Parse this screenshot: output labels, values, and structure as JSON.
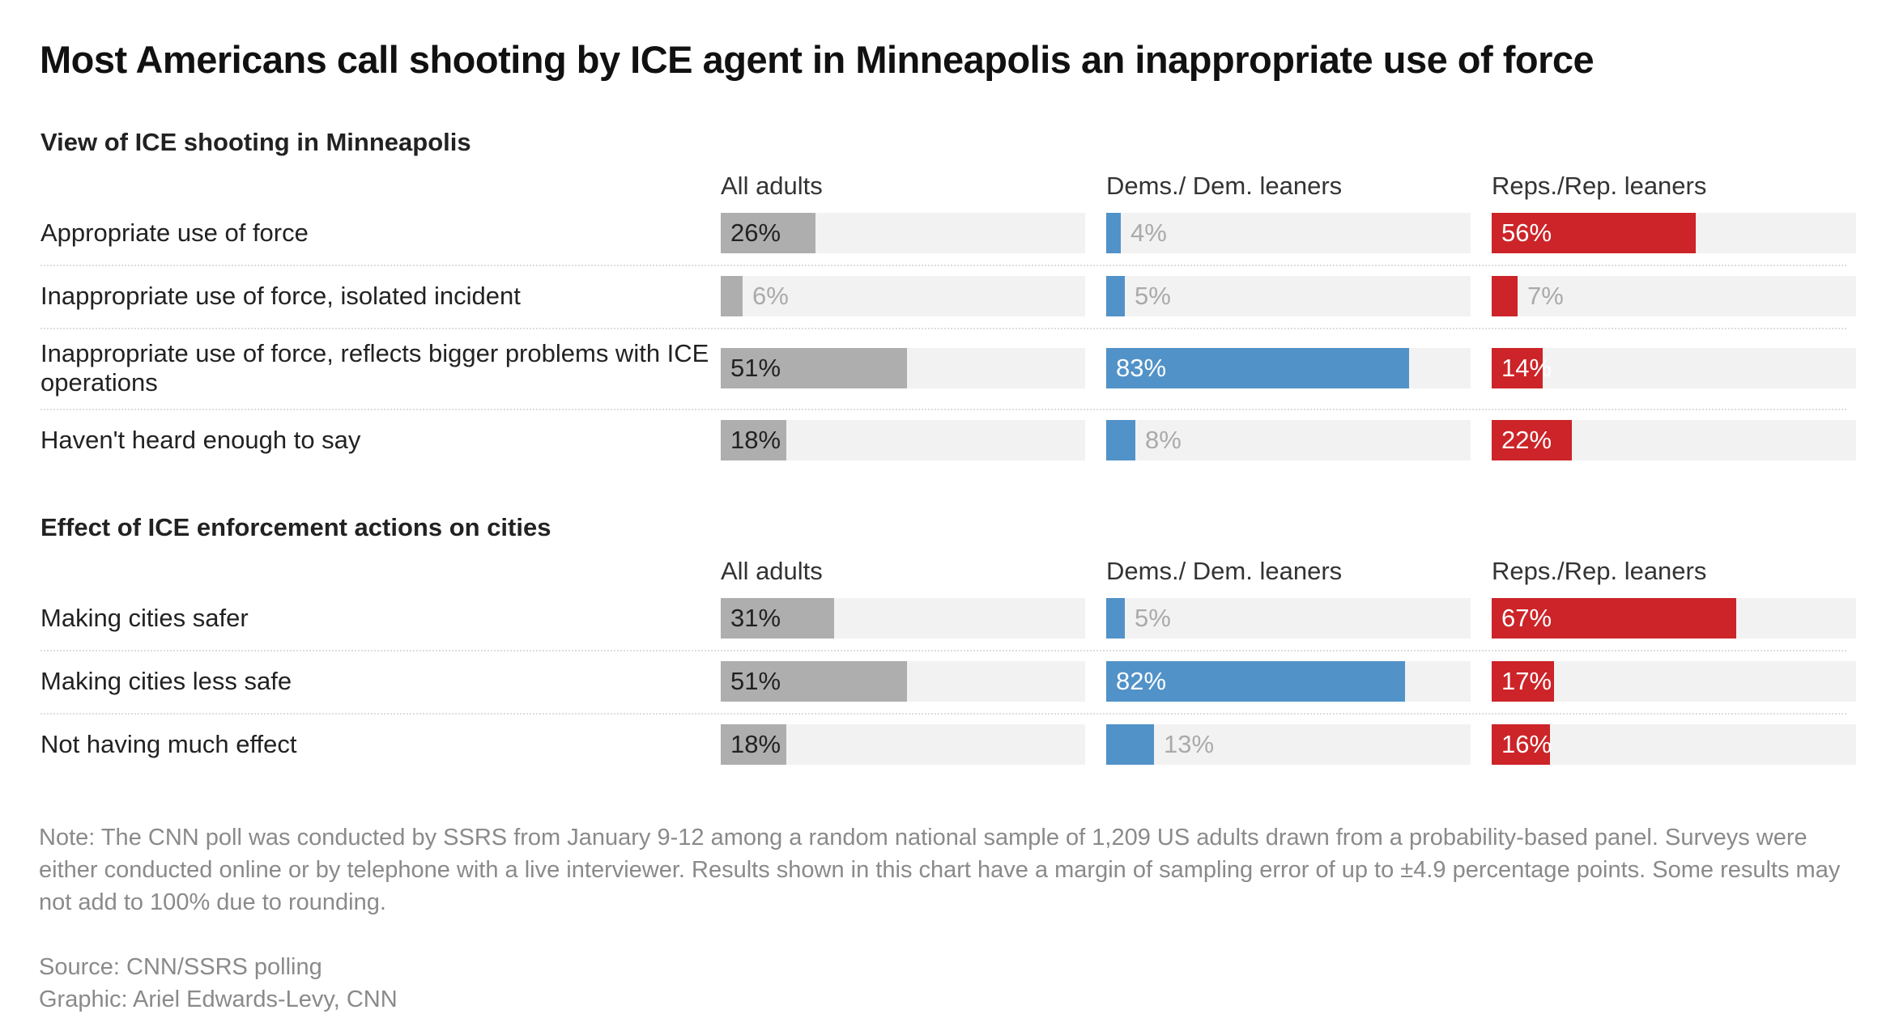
{
  "title": "Most Americans call shooting by ICE agent in Minneapolis an inappropriate use of force",
  "colors": {
    "all": "#aeaeae",
    "dem": "#5192c8",
    "rep": "#cc2428",
    "track": "#f2f2f2",
    "label_inside": "#222222",
    "label_inside_rep": "#ffffff",
    "label_outside": "#aaaaaa"
  },
  "chart_data": [
    {
      "type": "bar",
      "title": "View of ICE shooting in Minneapolis",
      "xlim": [
        0,
        100
      ],
      "groups": [
        "All adults",
        "Dems./ Dem. leaners",
        "Reps./Rep. leaners"
      ],
      "categories": [
        "Appropriate use of force",
        "Inappropriate use of force, isolated incident",
        "Inappropriate use of force, reflects bigger problems with ICE operations",
        "Haven't heard enough to say"
      ],
      "series": [
        {
          "name": "All adults",
          "values": [
            26,
            6,
            51,
            18
          ],
          "labels": [
            "26%",
            "6%",
            "51%",
            "18%"
          ]
        },
        {
          "name": "Dems./ Dem. leaners",
          "values": [
            4,
            5,
            83,
            8
          ],
          "labels": [
            "4%",
            "5%",
            "83%",
            "8%"
          ]
        },
        {
          "name": "Reps./Rep. leaners",
          "values": [
            56,
            7,
            14,
            22
          ],
          "labels": [
            "56%",
            "7%",
            "14%",
            "22%"
          ]
        }
      ]
    },
    {
      "type": "bar",
      "title": "Effect of ICE enforcement actions on cities",
      "xlim": [
        0,
        100
      ],
      "groups": [
        "All adults",
        "Dems./ Dem. leaners",
        "Reps./Rep. leaners"
      ],
      "categories": [
        "Making cities safer",
        "Making cities less safe",
        "Not having much effect"
      ],
      "series": [
        {
          "name": "All adults",
          "values": [
            31,
            51,
            18
          ],
          "labels": [
            "31%",
            "51%",
            "18%"
          ]
        },
        {
          "name": "Dems./ Dem. leaners",
          "values": [
            5,
            82,
            13
          ],
          "labels": [
            "5%",
            "82%",
            "13%"
          ]
        },
        {
          "name": "Reps./Rep. leaners",
          "values": [
            67,
            17,
            16
          ],
          "labels": [
            "67%",
            "17%",
            "16%"
          ]
        }
      ]
    }
  ],
  "note": "Note: The CNN poll was conducted by SSRS from January 9-12 among a random national sample of 1,209 US adults drawn from a probability-based panel. Surveys were either conducted online or by telephone with a live interviewer. Results shown in this chart have a margin of sampling error of up to ±4.9 percentage points. Some results may not add to 100% due to rounding.",
  "source": "Source: CNN/SSRS polling",
  "graphic": "Graphic: Ariel Edwards-Levy, CNN"
}
